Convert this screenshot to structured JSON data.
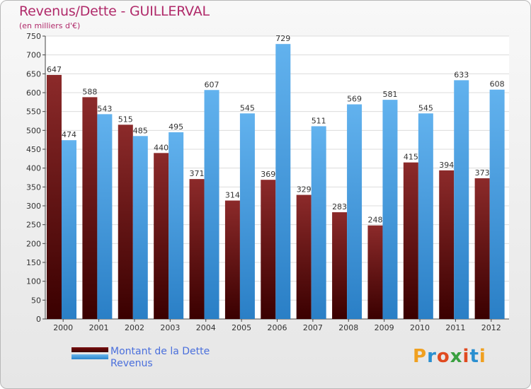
{
  "chart_data": {
    "type": "bar",
    "title": "Revenus/Dette - GUILLERVAL",
    "subtitle": "(en milliers d'€)",
    "categories": [
      "2000",
      "2001",
      "2002",
      "2003",
      "2004",
      "2005",
      "2006",
      "2007",
      "2008",
      "2009",
      "2010",
      "2011",
      "2012"
    ],
    "series": [
      {
        "name": "Montant de la Dette",
        "color": "#8b2020",
        "values": [
          647,
          588,
          515,
          440,
          371,
          314,
          369,
          329,
          283,
          248,
          415,
          394,
          373
        ]
      },
      {
        "name": "Revenus",
        "color": "#4aa0e2",
        "values": [
          474,
          543,
          485,
          495,
          607,
          545,
          729,
          511,
          569,
          581,
          545,
          633,
          608
        ]
      }
    ],
    "ylim": [
      0,
      750
    ],
    "yticks": [
      0,
      50,
      100,
      150,
      200,
      250,
      300,
      350,
      400,
      450,
      500,
      550,
      600,
      650,
      700,
      750
    ],
    "grid": true,
    "legend_position": "bottom-left"
  },
  "logo": {
    "letters": [
      "P",
      "r",
      "o",
      "x",
      "i",
      "t",
      "i"
    ],
    "colors": [
      "#f0a020",
      "#2a8fd0",
      "#e04a20",
      "#3aa040",
      "#e04a20",
      "#2a8fd0",
      "#f0a020"
    ]
  }
}
